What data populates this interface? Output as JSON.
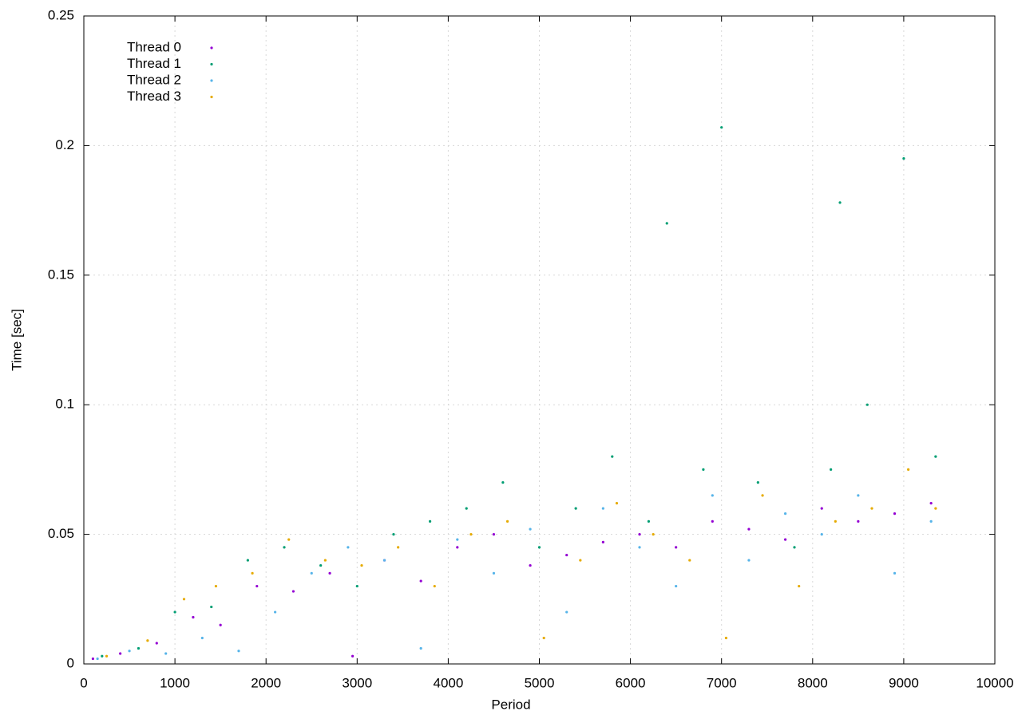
{
  "chart_data": {
    "type": "scatter",
    "x_label": "Period",
    "y_label": "Time [sec]",
    "xlim": [
      0,
      10000
    ],
    "xticks": [
      0,
      1000,
      2000,
      3000,
      4000,
      5000,
      6000,
      7000,
      8000,
      9000,
      10000
    ],
    "ylim": [
      0,
      0.25
    ],
    "yticks": [
      0,
      0.05,
      0.1,
      0.15,
      0.2,
      0.25
    ],
    "grid": true,
    "legend": "top-left",
    "series": [
      {
        "name": "Thread 0",
        "color": "#9400d3",
        "x": [
          100,
          400,
          800,
          1200,
          1500,
          1900,
          2300,
          2700,
          2950,
          3300,
          3700,
          4100,
          4500,
          4900,
          5300,
          5700,
          6100,
          6500,
          6900,
          7300,
          7700,
          8100,
          8500,
          8900,
          9300
        ],
        "values": [
          0.002,
          0.004,
          0.008,
          0.018,
          0.015,
          0.03,
          0.028,
          0.035,
          0.003,
          0.04,
          0.032,
          0.045,
          0.05,
          0.038,
          0.042,
          0.047,
          0.05,
          0.045,
          0.055,
          0.052,
          0.048,
          0.06,
          0.055,
          0.058,
          0.062
        ]
      },
      {
        "name": "Thread 1",
        "color": "#009e73",
        "x": [
          200,
          600,
          1000,
          1400,
          1800,
          2200,
          2600,
          3000,
          3400,
          3800,
          4200,
          4600,
          5000,
          5400,
          5800,
          6200,
          6400,
          6800,
          7000,
          7400,
          7800,
          8200,
          8300,
          8600,
          9000,
          9350
        ],
        "values": [
          0.003,
          0.006,
          0.02,
          0.022,
          0.04,
          0.045,
          0.038,
          0.03,
          0.05,
          0.055,
          0.06,
          0.07,
          0.045,
          0.06,
          0.08,
          0.055,
          0.17,
          0.075,
          0.207,
          0.07,
          0.045,
          0.075,
          0.178,
          0.1,
          0.195,
          0.08
        ]
      },
      {
        "name": "Thread 2",
        "color": "#56b4e9",
        "x": [
          150,
          500,
          900,
          1300,
          1700,
          2100,
          2500,
          2900,
          3300,
          3700,
          4100,
          4500,
          4900,
          5300,
          5700,
          6100,
          6500,
          6900,
          7300,
          7700,
          8100,
          8500,
          8900,
          9300
        ],
        "values": [
          0.002,
          0.005,
          0.004,
          0.01,
          0.005,
          0.02,
          0.035,
          0.045,
          0.04,
          0.006,
          0.048,
          0.035,
          0.052,
          0.02,
          0.06,
          0.045,
          0.03,
          0.065,
          0.04,
          0.058,
          0.05,
          0.065,
          0.035,
          0.055
        ]
      },
      {
        "name": "Thread 3",
        "color": "#e6ab02",
        "x": [
          250,
          700,
          1100,
          1450,
          1850,
          2250,
          2650,
          3050,
          3450,
          3850,
          4250,
          4650,
          5050,
          5450,
          5850,
          6250,
          6650,
          7050,
          7450,
          7850,
          8250,
          8650,
          9050,
          9350
        ],
        "values": [
          0.003,
          0.009,
          0.025,
          0.03,
          0.035,
          0.048,
          0.04,
          0.038,
          0.045,
          0.03,
          0.05,
          0.055,
          0.01,
          0.04,
          0.062,
          0.05,
          0.04,
          0.01,
          0.065,
          0.03,
          0.055,
          0.06,
          0.075,
          0.06
        ]
      }
    ]
  }
}
